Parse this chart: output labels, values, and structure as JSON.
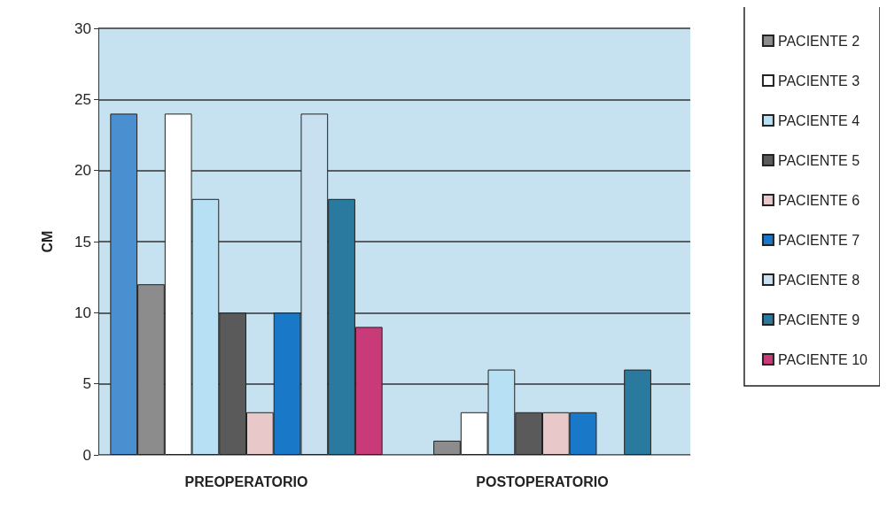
{
  "chart_data": {
    "type": "bar",
    "ylabel": "CM",
    "categories": [
      "PREOPERATORIO",
      "POSTOPERATORIO"
    ],
    "ylim": [
      0,
      30
    ],
    "yticks": [
      0,
      5,
      10,
      15,
      20,
      25,
      30
    ],
    "grid": "y",
    "legend": "right",
    "series": [
      {
        "color": "#4a90d0",
        "values": [
          24,
          0
        ]
      },
      {
        "name": "PACIENTE 2",
        "color": "#8c8c8c",
        "values": [
          12,
          1
        ]
      },
      {
        "name": "PACIENTE 3",
        "color": "#ffffff",
        "values": [
          24,
          3
        ]
      },
      {
        "name": "PACIENTE 4",
        "color": "#b8e0f5",
        "values": [
          18,
          6
        ]
      },
      {
        "name": "PACIENTE 5",
        "color": "#5a5a5a",
        "values": [
          10,
          3
        ]
      },
      {
        "name": "PACIENTE 6",
        "color": "#e8c8c8",
        "values": [
          3,
          3
        ]
      },
      {
        "name": "PACIENTE 7",
        "color": "#1a78c8",
        "values": [
          10,
          3
        ]
      },
      {
        "name": "PACIENTE 8",
        "color": "#c8e0f0",
        "values": [
          24,
          0
        ]
      },
      {
        "name": "PACIENTE 9",
        "color": "#2a7aa0",
        "values": [
          18,
          6
        ]
      },
      {
        "name": "PACIENTE 10",
        "color": "#c83a78",
        "values": [
          9,
          0
        ]
      }
    ]
  }
}
